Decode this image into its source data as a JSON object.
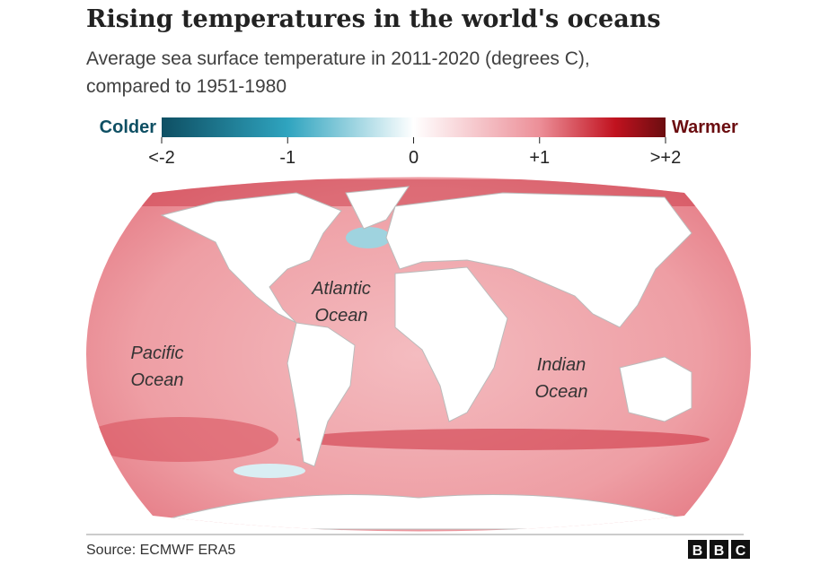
{
  "header": {
    "title": "Rising temperatures in the world's oceans",
    "subtitle_lines": [
      "Average sea surface temperature in 2011-2020 (degrees C),",
      "compared to 1951-1980"
    ]
  },
  "legend": {
    "low_label": "Colder",
    "high_label": "Warmer",
    "range": [
      -2,
      2
    ],
    "ticks": [
      {
        "value": -2,
        "label": "<-2"
      },
      -1,
      0,
      {
        "value": 1,
        "label": "+1"
      },
      {
        "value": 2,
        "label": ">+2"
      }
    ]
  },
  "map": {
    "labels": [
      [
        "Atlantic",
        "Ocean"
      ],
      [
        "Pacific",
        "Ocean"
      ],
      [
        "Indian",
        "Ocean"
      ]
    ]
  },
  "footer": {
    "source": "Source: ECMWF ERA5",
    "logo": [
      "B",
      "B",
      "C"
    ]
  }
}
